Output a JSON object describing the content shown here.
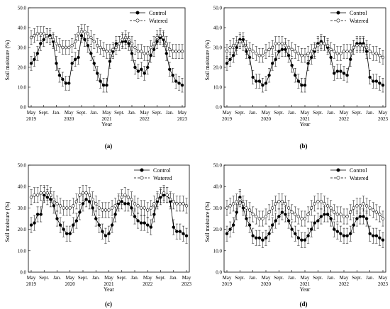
{
  "chart_data": [
    {
      "type": "line",
      "panel_label": "(a)",
      "xlabel": "Year",
      "ylabel": "Soil moisture (%)",
      "ylim": [
        0,
        50
      ],
      "yticks": [
        "0.0",
        "10.0",
        "20.0",
        "30.0",
        "40.0",
        "50.0"
      ],
      "xticks": [
        {
          "m": 0,
          "l1": "May",
          "l2": "2019"
        },
        {
          "m": 4,
          "l1": "Sept.",
          "l2": ""
        },
        {
          "m": 8,
          "l1": "Jan.",
          "l2": ""
        },
        {
          "m": 12,
          "l1": "May",
          "l2": "2020"
        },
        {
          "m": 16,
          "l1": "Sept.",
          "l2": ""
        },
        {
          "m": 20,
          "l1": "Jan.",
          "l2": ""
        },
        {
          "m": 24,
          "l1": "May",
          "l2": "2021"
        },
        {
          "m": 28,
          "l1": "Sept.",
          "l2": ""
        },
        {
          "m": 32,
          "l1": "Jan.",
          "l2": ""
        },
        {
          "m": 36,
          "l1": "May",
          "l2": "2022"
        },
        {
          "m": 40,
          "l1": "Sept.",
          "l2": ""
        },
        {
          "m": 44,
          "l1": "Jan.",
          "l2": ""
        },
        {
          "m": 48,
          "l1": "May",
          "l2": "2023"
        }
      ],
      "legend_position": "top-right",
      "series": [
        {
          "name": "Control",
          "marker": "filled",
          "values": [
            22,
            24,
            27,
            32,
            34,
            36,
            36,
            33,
            22,
            16,
            14,
            12,
            12,
            22,
            24,
            25,
            36,
            34,
            31,
            27,
            22,
            17,
            13,
            11,
            11,
            23,
            28,
            32,
            32,
            33,
            33,
            32,
            27,
            20,
            18,
            19,
            17,
            20,
            26,
            29,
            33,
            35,
            34,
            27,
            19,
            16,
            13,
            12,
            11
          ]
        },
        {
          "name": "Watered",
          "marker": "open",
          "values": [
            35,
            36,
            37,
            37,
            37,
            36,
            35,
            34,
            32,
            31,
            30,
            30,
            30,
            31,
            33,
            37,
            38,
            38,
            37,
            35,
            33,
            31,
            30,
            29,
            28,
            28,
            29,
            30,
            32,
            34,
            35,
            34,
            32,
            30,
            28,
            28,
            27,
            27,
            30,
            32,
            35,
            36,
            35,
            32,
            29,
            28,
            28,
            28,
            28
          ]
        }
      ]
    },
    {
      "type": "line",
      "panel_label": "(b)",
      "xlabel": "Year",
      "ylabel": "Soil moisture (%)",
      "ylim": [
        0,
        50
      ],
      "yticks": [
        "0.0",
        "10.0",
        "20.0",
        "30.0",
        "40.0",
        "50.0"
      ],
      "xticks": [
        {
          "m": 0,
          "l1": "May",
          "l2": "2019"
        },
        {
          "m": 4,
          "l1": "Sept.",
          "l2": ""
        },
        {
          "m": 8,
          "l1": "Jan.",
          "l2": ""
        },
        {
          "m": 12,
          "l1": "May",
          "l2": "2020"
        },
        {
          "m": 16,
          "l1": "Sept.",
          "l2": ""
        },
        {
          "m": 20,
          "l1": "Jan.",
          "l2": ""
        },
        {
          "m": 24,
          "l1": "May",
          "l2": "2021"
        },
        {
          "m": 28,
          "l1": "Sept.",
          "l2": ""
        },
        {
          "m": 32,
          "l1": "Jan.",
          "l2": ""
        },
        {
          "m": 36,
          "l1": "May",
          "l2": "2022"
        },
        {
          "m": 40,
          "l1": "Sept.",
          "l2": ""
        },
        {
          "m": 44,
          "l1": "Jan.",
          "l2": ""
        },
        {
          "m": 48,
          "l1": "May",
          "l2": "2023"
        }
      ],
      "legend_position": "top-right",
      "series": [
        {
          "name": "Control",
          "marker": "filled",
          "values": [
            22,
            24,
            26,
            30,
            34,
            34,
            28,
            25,
            15,
            13,
            13,
            11,
            12,
            16,
            22,
            24,
            28,
            29,
            29,
            26,
            21,
            16,
            13,
            11,
            11,
            22,
            25,
            28,
            32,
            33,
            32,
            30,
            25,
            17,
            18,
            18,
            17,
            16,
            24,
            30,
            32,
            32,
            32,
            28,
            15,
            13,
            13,
            12,
            11
          ]
        },
        {
          "name": "Watered",
          "marker": "open",
          "values": [
            28,
            30,
            31,
            32,
            33,
            32,
            30,
            29,
            28,
            27,
            26,
            26,
            28,
            29,
            30,
            32,
            32,
            32,
            31,
            30,
            29,
            28,
            27,
            26,
            26,
            27,
            28,
            29,
            31,
            32,
            32,
            31,
            29,
            28,
            27,
            27,
            28,
            28,
            28,
            30,
            31,
            31,
            31,
            30,
            28,
            27,
            27,
            26,
            25
          ]
        }
      ]
    },
    {
      "type": "line",
      "panel_label": "(c)",
      "xlabel": "Year",
      "ylabel": "Soil moisture (%)",
      "ylim": [
        0,
        50
      ],
      "yticks": [
        "0.0",
        "10.0",
        "20.0",
        "30.0",
        "40.0",
        "50.0"
      ],
      "xticks": [
        {
          "m": 0,
          "l1": "May",
          "l2": "2019"
        },
        {
          "m": 4,
          "l1": "Sept.",
          "l2": ""
        },
        {
          "m": 8,
          "l1": "Jan.",
          "l2": ""
        },
        {
          "m": 12,
          "l1": "May",
          "l2": "2020"
        },
        {
          "m": 16,
          "l1": "Sept.",
          "l2": ""
        },
        {
          "m": 20,
          "l1": "Jan.",
          "l2": ""
        },
        {
          "m": 24,
          "l1": "May",
          "l2": "2021"
        },
        {
          "m": 28,
          "l1": "Sept.",
          "l2": ""
        },
        {
          "m": 32,
          "l1": "Jan.",
          "l2": ""
        },
        {
          "m": 36,
          "l1": "May",
          "l2": "2022"
        },
        {
          "m": 40,
          "l1": "Sept.",
          "l2": ""
        },
        {
          "m": 44,
          "l1": "Jan.",
          "l2": ""
        },
        {
          "m": 48,
          "l1": "May",
          "l2": "2023"
        }
      ],
      "legend_position": "top-right",
      "series": [
        {
          "name": "Control",
          "marker": "filled",
          "values": [
            22,
            23,
            27,
            27,
            36,
            35,
            34,
            31,
            25,
            22,
            20,
            18,
            18,
            22,
            24,
            28,
            32,
            34,
            33,
            30,
            25,
            22,
            19,
            17,
            18,
            22,
            27,
            32,
            33,
            32,
            32,
            30,
            26,
            24,
            23,
            23,
            22,
            21,
            27,
            33,
            35,
            36,
            36,
            33,
            21,
            19,
            19,
            18,
            17
          ]
        },
        {
          "name": "Watered",
          "marker": "open",
          "values": [
            35,
            36,
            36,
            37,
            37,
            37,
            36,
            34,
            32,
            31,
            30,
            30,
            30,
            31,
            33,
            36,
            37,
            37,
            36,
            34,
            32,
            30,
            29,
            29,
            29,
            30,
            31,
            33,
            35,
            36,
            35,
            34,
            32,
            31,
            30,
            30,
            29,
            30,
            32,
            34,
            36,
            37,
            36,
            34,
            33,
            32,
            32,
            32,
            31
          ]
        }
      ]
    },
    {
      "type": "line",
      "panel_label": "(d)",
      "xlabel": "Year",
      "ylabel": "Soil moisture (%)",
      "ylim": [
        0,
        50
      ],
      "yticks": [
        "0.0",
        "10.0",
        "20.0",
        "30.0",
        "40.0",
        "50.0"
      ],
      "xticks": [
        {
          "m": 0,
          "l1": "May",
          "l2": "2019"
        },
        {
          "m": 4,
          "l1": "Sept.",
          "l2": ""
        },
        {
          "m": 8,
          "l1": "Jan.",
          "l2": ""
        },
        {
          "m": 12,
          "l1": "May",
          "l2": "2020"
        },
        {
          "m": 16,
          "l1": "Sept.",
          "l2": ""
        },
        {
          "m": 20,
          "l1": "Jan.",
          "l2": ""
        },
        {
          "m": 24,
          "l1": "May",
          "l2": "2021"
        },
        {
          "m": 28,
          "l1": "Sept.",
          "l2": ""
        },
        {
          "m": 32,
          "l1": "Jan.",
          "l2": ""
        },
        {
          "m": 36,
          "l1": "May",
          "l2": "2022"
        },
        {
          "m": 40,
          "l1": "Sept.",
          "l2": ""
        },
        {
          "m": 44,
          "l1": "Jan.",
          "l2": ""
        },
        {
          "m": 48,
          "l1": "May",
          "l2": "2023"
        }
      ],
      "legend_position": "top-right",
      "series": [
        {
          "name": "Control",
          "marker": "filled",
          "values": [
            18,
            20,
            22,
            28,
            35,
            30,
            25,
            22,
            17,
            16,
            16,
            15,
            16,
            18,
            22,
            24,
            26,
            28,
            27,
            24,
            20,
            18,
            16,
            15,
            15,
            17,
            20,
            23,
            24,
            26,
            27,
            27,
            25,
            20,
            19,
            18,
            17,
            17,
            18,
            22,
            25,
            26,
            26,
            25,
            18,
            17,
            17,
            16,
            15
          ]
        },
        {
          "name": "Watered",
          "marker": "open",
          "values": [
            30,
            31,
            32,
            33,
            34,
            32,
            30,
            29,
            27,
            26,
            25,
            25,
            26,
            28,
            30,
            32,
            33,
            33,
            32,
            30,
            28,
            27,
            26,
            25,
            25,
            27,
            30,
            32,
            33,
            33,
            32,
            31,
            30,
            28,
            27,
            27,
            26,
            26,
            28,
            30,
            31,
            31,
            32,
            31,
            30,
            29,
            28,
            27,
            25
          ]
        }
      ]
    }
  ]
}
